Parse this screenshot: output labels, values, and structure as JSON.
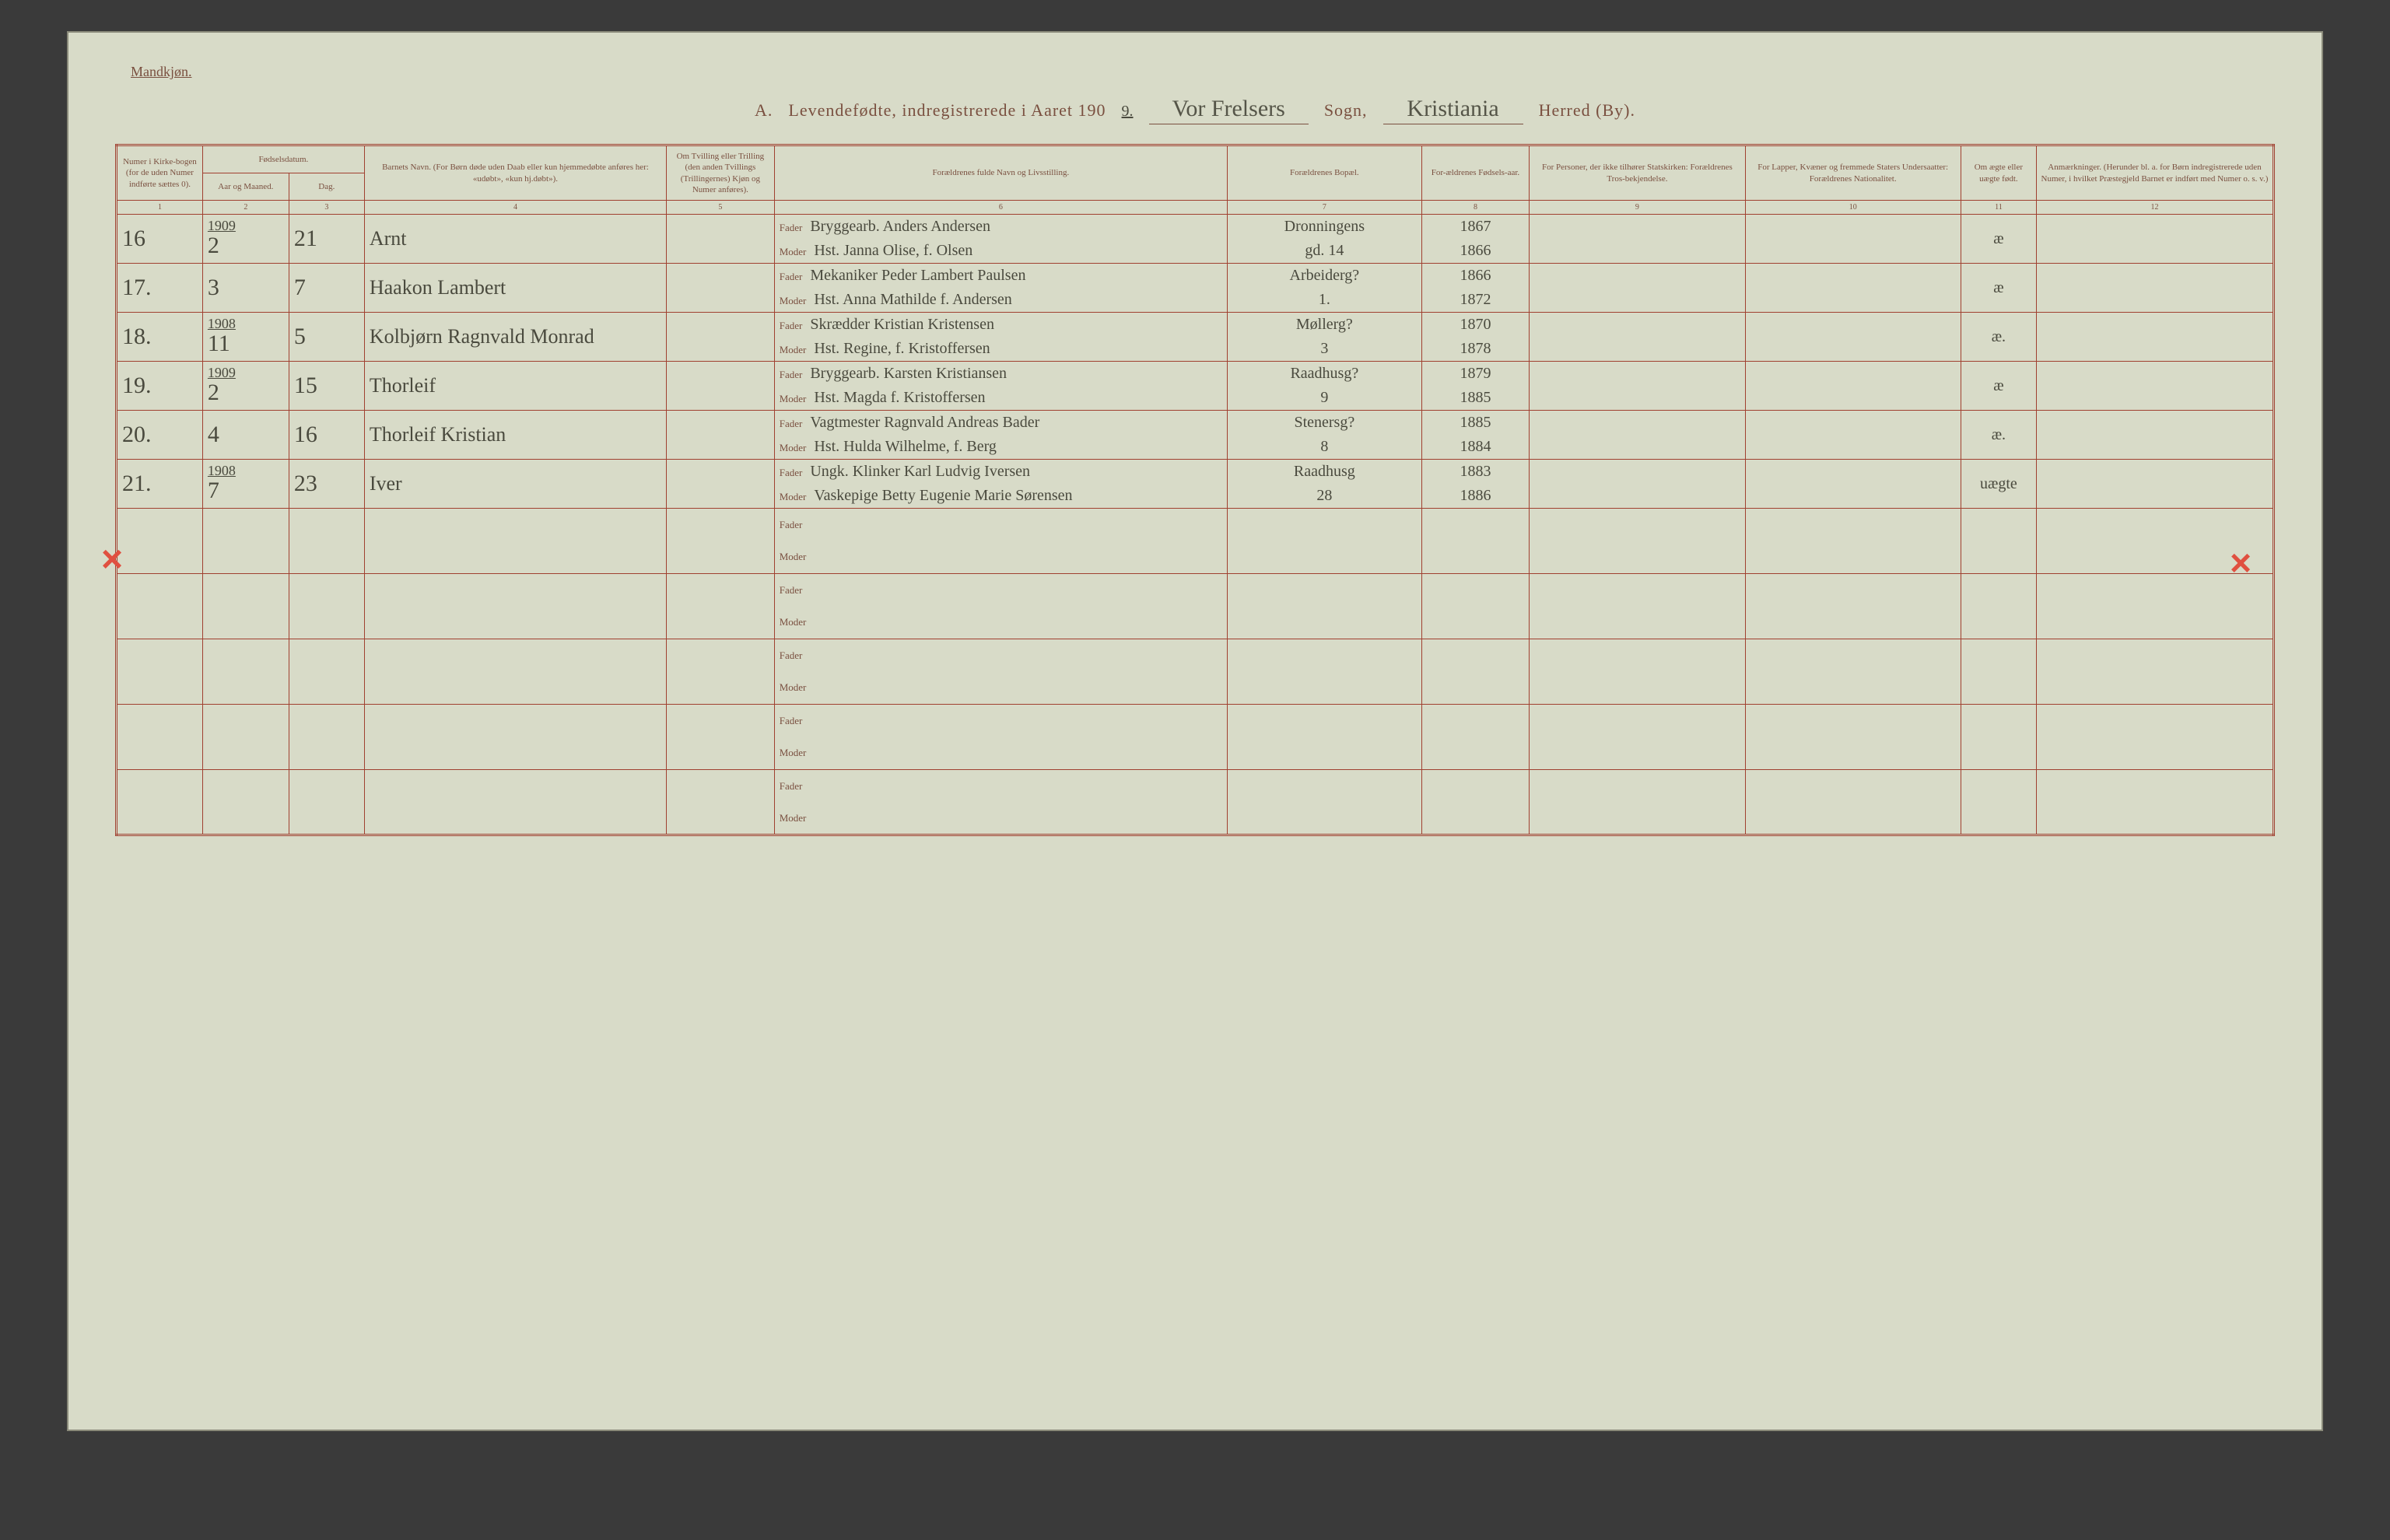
{
  "page": {
    "bg_color": "#d8dbc8",
    "ink_color": "#7a5040",
    "hand_color": "#4a4a3e",
    "rule_color": "#a04030",
    "red_mark_color": "#e05040"
  },
  "header": {
    "top_label": "Mandkjøn.",
    "section_letter": "A.",
    "title_text": "Levendefødte, indregistrerede i Aaret 190",
    "year_suffix": "9.",
    "sogn_value": "Vor Frelsers",
    "sogn_label": "Sogn,",
    "herred_value": "Kristiania",
    "herred_label": "Herred (By)."
  },
  "columns": {
    "c1": "Numer i Kirke-bogen (for de uden Numer indførte sættes 0).",
    "c2_top": "Fødselsdatum.",
    "c2a": "Aar og Maaned.",
    "c2b": "Dag.",
    "c4": "Barnets Navn.\n(For Børn døde uden Daab eller kun hjemmedøbte anføres her: «udøbt», «kun hj.døbt»).",
    "c5": "Om Tvilling eller Trilling (den anden Tvillings (Trillingernes) Kjøn og Numer anføres).",
    "c6": "Forældrenes fulde Navn og Livsstilling.",
    "c7": "Forældrenes Bopæl.",
    "c8": "For-ældrenes Fødsels-aar.",
    "c9": "For Personer, der ikke tilhører Statskirken: Forældrenes Tros-bekjendelse.",
    "c10": "For Lapper, Kvæner og fremmede Staters Undersaatter: Forældrenes Nationalitet.",
    "c11": "Om ægte eller uægte født.",
    "c12": "Anmærkninger.\n(Herunder bl. a. for Børn indregistrerede uden Numer, i hvilket Præstegjeld Barnet er indført med Numer o. s. v.)"
  },
  "colnums": [
    "1",
    "2",
    "3",
    "4",
    "5",
    "6",
    "7",
    "8",
    "9",
    "10",
    "11",
    "12"
  ],
  "role": {
    "fader": "Fader",
    "moder": "Moder"
  },
  "rows": [
    {
      "num": "16",
      "year_over": "1909",
      "month": "2",
      "day": "21",
      "name": "Arnt",
      "fader": "Bryggearb. Anders Andersen",
      "f_bopael": "Dronningens",
      "f_year": "1867",
      "moder": "Hst. Janna Olise, f. Olsen",
      "m_bopael": "gd. 14",
      "m_year": "1866",
      "legit": "æ",
      "red_x": false
    },
    {
      "num": "17.",
      "year_over": "",
      "month": "3",
      "day": "7",
      "name": "Haakon Lambert",
      "fader": "Mekaniker Peder Lambert Paulsen",
      "f_bopael": "Arbeiderg?",
      "f_year": "1866",
      "moder": "Hst. Anna Mathilde f. Andersen",
      "m_bopael": "1.",
      "m_year": "1872",
      "legit": "æ",
      "red_x": false
    },
    {
      "num": "18.",
      "year_over": "1908",
      "month": "11",
      "day": "5",
      "name": "Kolbjørn Ragnvald Monrad",
      "fader": "Skrædder Kristian Kristensen",
      "f_bopael": "Møllerg?",
      "f_year": "1870",
      "moder": "Hst. Regine, f. Kristoffersen",
      "m_bopael": "3",
      "m_year": "1878",
      "legit": "æ.",
      "red_x": false
    },
    {
      "num": "19.",
      "year_over": "1909",
      "month": "2",
      "day": "15",
      "name": "Thorleif",
      "fader": "Bryggearb. Karsten Kristiansen",
      "f_bopael": "Raadhusg?",
      "f_year": "1879",
      "moder": "Hst. Magda f. Kristoffersen",
      "m_bopael": "9",
      "m_year": "1885",
      "legit": "æ",
      "red_x": false
    },
    {
      "num": "20.",
      "year_over": "",
      "month": "4",
      "day": "16",
      "name": "Thorleif Kristian",
      "fader": "Vagtmester Ragnvald Andreas Bader",
      "f_bopael": "Stenersg?",
      "f_year": "1885",
      "moder": "Hst. Hulda Wilhelme, f. Berg",
      "m_bopael": "8",
      "m_year": "1884",
      "legit": "æ.",
      "red_x": false
    },
    {
      "num": "21.",
      "year_over": "1908",
      "month": "7",
      "day": "23",
      "name": "Iver",
      "fader": "Ungk. Klinker Karl Ludvig Iversen",
      "f_bopael": "Raadhusg",
      "f_year": "1883",
      "moder": "Vaskepige Betty Eugenie Marie Sørensen",
      "m_bopael": "28",
      "m_year": "1886",
      "legit": "uægte",
      "red_x": true
    }
  ],
  "empty_rows": 5
}
